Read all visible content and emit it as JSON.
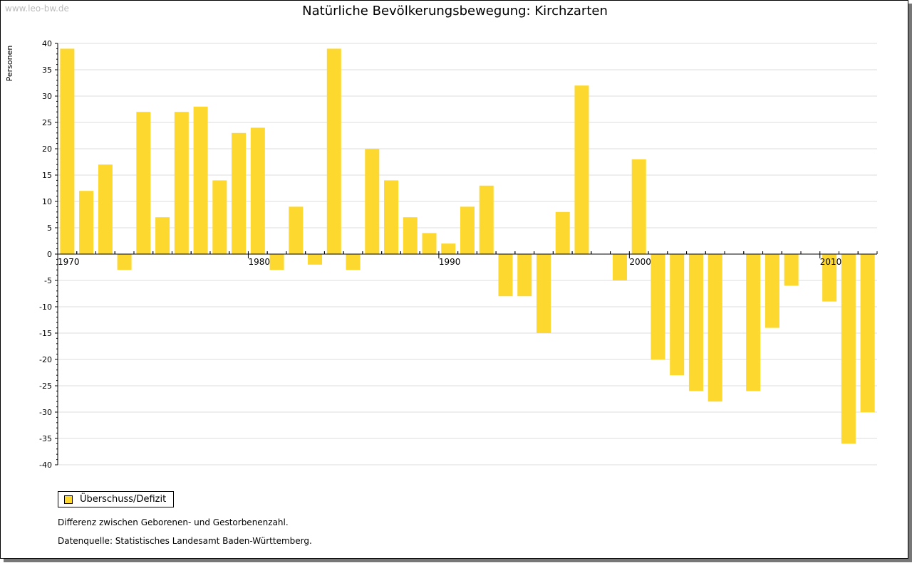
{
  "watermark": "www.leo-bw.de",
  "notes": {
    "description": "Differenz zwischen Geborenen- und Gestorbenenzahl.",
    "source": "Datenquelle: Statistisches Landesamt Baden-Württemberg."
  },
  "chart_data": {
    "type": "bar",
    "title": "Natürliche Bevölkerungsbewegung: Kirchzarten",
    "xlabel": "",
    "ylabel": "Personen",
    "ylim": [
      -40,
      40
    ],
    "yticks": [
      40,
      35,
      30,
      25,
      20,
      15,
      10,
      5,
      0,
      -5,
      -10,
      -15,
      -20,
      -25,
      -30,
      -35,
      -40
    ],
    "xtick_labels": [
      "1970",
      "1980",
      "1990",
      "2000",
      "2010"
    ],
    "grid": true,
    "legend_position": "bottom-left",
    "color": "#fdd82e",
    "categories": [
      1970,
      1971,
      1972,
      1973,
      1974,
      1975,
      1976,
      1977,
      1978,
      1979,
      1980,
      1981,
      1982,
      1983,
      1984,
      1985,
      1986,
      1987,
      1988,
      1989,
      1990,
      1991,
      1992,
      1993,
      1994,
      1995,
      1996,
      1997,
      1998,
      1999,
      2000,
      2001,
      2002,
      2003,
      2004,
      2005,
      2006,
      2007,
      2008,
      2009,
      2010,
      2011,
      2012
    ],
    "series": [
      {
        "name": "Überschuss/Defizit",
        "values": [
          39,
          12,
          17,
          -3,
          27,
          7,
          27,
          28,
          14,
          23,
          24,
          -3,
          9,
          -2,
          39,
          -3,
          20,
          14,
          7,
          4,
          2,
          9,
          13,
          -8,
          -8,
          -15,
          8,
          32,
          0,
          -5,
          18,
          -20,
          -23,
          -26,
          -28,
          0,
          -26,
          -14,
          -6,
          0,
          -9,
          -36,
          -30
        ]
      }
    ]
  }
}
